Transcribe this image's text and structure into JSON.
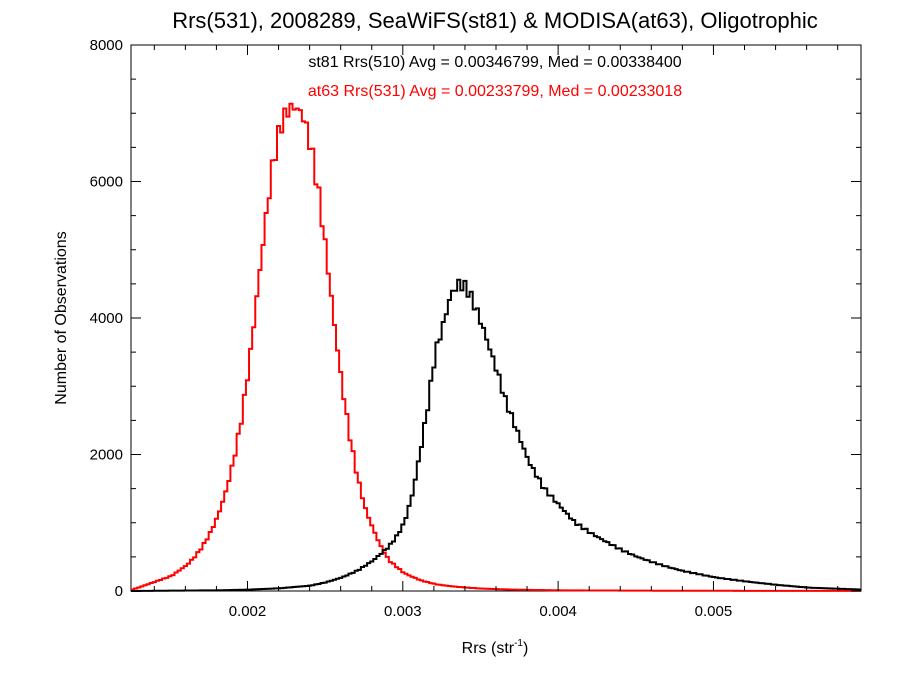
{
  "chart_data": {
    "type": "line",
    "title": "Rrs(531), 2008289, SeaWiFS(st81) & MODISA(at63), Oligotrophic",
    "xlabel": "Rrs (str",
    "xlabel_sup": "-1",
    "xlabel_suffix": ")",
    "ylabel": "Number of Observations",
    "xlim": [
      0.00125,
      0.00595
    ],
    "ylim": [
      0,
      8000
    ],
    "x_ticks": [
      {
        "value": 0.002,
        "label": "0.002"
      },
      {
        "value": 0.003,
        "label": "0.003"
      },
      {
        "value": 0.004,
        "label": "0.004"
      },
      {
        "value": 0.005,
        "label": "0.005"
      }
    ],
    "y_ticks": [
      {
        "value": 0,
        "label": "0"
      },
      {
        "value": 2000,
        "label": "2000"
      },
      {
        "value": 4000,
        "label": "4000"
      },
      {
        "value": 6000,
        "label": "6000"
      },
      {
        "value": 8000,
        "label": "8000"
      }
    ],
    "annotations": [
      {
        "text": "st81 Rrs(510) Avg = 0.00346799, Med = 0.00338400",
        "color": "#000000"
      },
      {
        "text": "at63 Rrs(531) Avg = 0.00233799, Med = 0.00233018",
        "color": "#ff0000"
      }
    ],
    "series": [
      {
        "color": "#ff0000",
        "x": [
          0.00125,
          0.0013,
          0.00135,
          0.0014,
          0.00145,
          0.0015,
          0.00155,
          0.0016,
          0.00165,
          0.0017,
          0.00175,
          0.0018,
          0.00185,
          0.0019,
          0.00195,
          0.002,
          0.00205,
          0.0021,
          0.00215,
          0.0022,
          0.00225,
          0.0023,
          0.00235,
          0.0024,
          0.00245,
          0.0025,
          0.00255,
          0.0026,
          0.00265,
          0.0027,
          0.00275,
          0.0028,
          0.00285,
          0.0029,
          0.003,
          0.0031,
          0.0032,
          0.0033,
          0.0034,
          0.0035,
          0.0037,
          0.004,
          0.0045,
          0.005,
          0.0055,
          0.00595
        ],
        "y": [
          20,
          60,
          100,
          140,
          180,
          220,
          300,
          380,
          500,
          650,
          850,
          1100,
          1450,
          1900,
          2500,
          3300,
          4300,
          5300,
          6200,
          6800,
          7050,
          7100,
          6950,
          6500,
          5800,
          4900,
          3900,
          3000,
          2250,
          1650,
          1200,
          900,
          650,
          450,
          260,
          160,
          100,
          70,
          50,
          35,
          20,
          10,
          5,
          3,
          2,
          1
        ]
      },
      {
        "color": "#000000",
        "x": [
          0.00125,
          0.0015,
          0.0018,
          0.002,
          0.0022,
          0.0024,
          0.0025,
          0.0026,
          0.0027,
          0.0028,
          0.0029,
          0.00295,
          0.003,
          0.00305,
          0.0031,
          0.00315,
          0.0032,
          0.00325,
          0.0033,
          0.00335,
          0.0034,
          0.00345,
          0.0035,
          0.00355,
          0.0036,
          0.00365,
          0.0037,
          0.00375,
          0.0038,
          0.00385,
          0.0039,
          0.004,
          0.0041,
          0.0042,
          0.0043,
          0.0044,
          0.0045,
          0.0046,
          0.0047,
          0.0048,
          0.005,
          0.0052,
          0.0054,
          0.0056,
          0.00595
        ],
        "y": [
          0,
          5,
          10,
          20,
          40,
          80,
          130,
          200,
          300,
          450,
          650,
          800,
          1000,
          1400,
          2000,
          2700,
          3500,
          3900,
          4350,
          4500,
          4450,
          4200,
          3900,
          3550,
          3200,
          2800,
          2500,
          2200,
          1900,
          1700,
          1500,
          1250,
          1000,
          850,
          720,
          600,
          500,
          420,
          350,
          290,
          200,
          140,
          90,
          50,
          20
        ]
      }
    ]
  }
}
